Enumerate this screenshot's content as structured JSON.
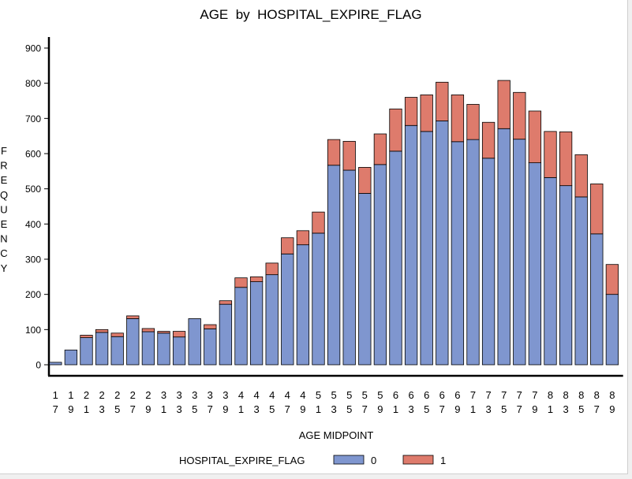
{
  "chart_data": {
    "type": "bar",
    "stacked": true,
    "title": "AGE  by  HOSPITAL_EXPIRE_FLAG",
    "xlabel": "AGE MIDPOINT",
    "ylabel": "FREQUENCY",
    "ylabel_letters": [
      "F",
      "R",
      "E",
      "Q",
      "U",
      "E",
      "N",
      "C",
      "Y"
    ],
    "ylim": [
      0,
      900
    ],
    "yticks": [
      0,
      100,
      200,
      300,
      400,
      500,
      600,
      700,
      800,
      900
    ],
    "categories": [
      "17",
      "19",
      "21",
      "23",
      "25",
      "27",
      "29",
      "31",
      "33",
      "35",
      "37",
      "39",
      "41",
      "43",
      "45",
      "47",
      "49",
      "51",
      "53",
      "55",
      "57",
      "59",
      "61",
      "63",
      "65",
      "67",
      "69",
      "71",
      "73",
      "75",
      "77",
      "79",
      "81",
      "83",
      "85",
      "87",
      "89"
    ],
    "series": [
      {
        "name": "0",
        "color": "#7f96cf",
        "values": [
          7,
          42,
          77,
          92,
          80,
          131,
          94,
          90,
          79,
          131,
          102,
          172,
          220,
          236,
          256,
          315,
          341,
          374,
          567,
          553,
          487,
          569,
          607,
          680,
          663,
          693,
          634,
          640,
          587,
          671,
          641,
          574,
          532,
          509,
          477,
          372,
          200
        ]
      },
      {
        "name": "1",
        "color": "#de7b6c",
        "values": [
          0,
          0,
          7,
          8,
          10,
          8,
          9,
          5,
          16,
          0,
          12,
          10,
          27,
          14,
          33,
          46,
          40,
          60,
          73,
          82,
          74,
          87,
          120,
          80,
          104,
          110,
          133,
          100,
          102,
          137,
          133,
          147,
          131,
          153,
          120,
          142,
          85
        ]
      }
    ],
    "legend": {
      "title": "HOSPITAL_EXPIRE_FLAG",
      "position": "bottom"
    },
    "grid": false
  }
}
